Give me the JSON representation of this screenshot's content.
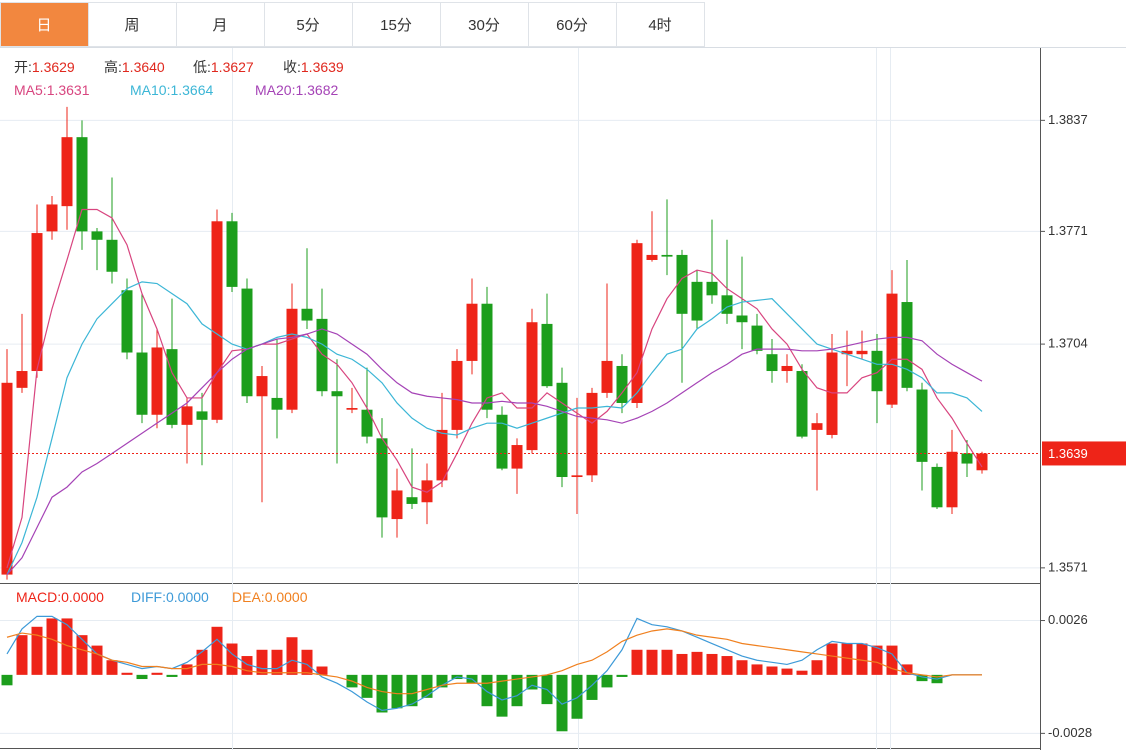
{
  "tabs": {
    "items": [
      "日",
      "周",
      "月",
      "5分",
      "15分",
      "30分",
      "60分",
      "4时"
    ],
    "active": 0
  },
  "chart_data": [
    {
      "type": "candlestick",
      "up_color": "#ee2418",
      "down_color": "#1c9e1c",
      "open": [
        1.3567,
        1.3678,
        1.3688,
        1.3771,
        1.3786,
        1.3827,
        1.3771,
        1.3766,
        1.3736,
        1.3699,
        1.3662,
        1.3701,
        1.3656,
        1.3664,
        1.3659,
        1.3777,
        1.3737,
        1.3673,
        1.3672,
        1.3665,
        1.3725,
        1.3719,
        1.3676,
        1.3665,
        1.3665,
        1.3648,
        1.36,
        1.3613,
        1.361,
        1.3623,
        1.3653,
        1.3694,
        1.3728,
        1.3662,
        1.363,
        1.3641,
        1.3716,
        1.3681,
        1.3625,
        1.3626,
        1.3675,
        1.3691,
        1.3669,
        1.3754,
        1.3757,
        1.3757,
        1.3741,
        1.3741,
        1.3733,
        1.3721,
        1.3715,
        1.3698,
        1.3688,
        1.3688,
        1.3653,
        1.365,
        1.3698,
        1.3698,
        1.37,
        1.3668,
        1.3729,
        1.3677,
        1.3631,
        1.3607,
        1.3639,
        1.3629
      ],
      "high": [
        1.3701,
        1.3722,
        1.3787,
        1.3792,
        1.3845,
        1.3837,
        1.3773,
        1.3803,
        1.3743,
        1.3734,
        1.3713,
        1.3731,
        1.3672,
        1.3675,
        1.3784,
        1.3782,
        1.3743,
        1.3691,
        1.3707,
        1.374,
        1.3761,
        1.3737,
        1.3695,
        1.3678,
        1.369,
        1.366,
        1.363,
        1.3642,
        1.3633,
        1.3675,
        1.3701,
        1.3743,
        1.3738,
        1.3667,
        1.3648,
        1.3725,
        1.3734,
        1.369,
        1.3672,
        1.3678,
        1.374,
        1.3698,
        1.3766,
        1.3783,
        1.379,
        1.376,
        1.3748,
        1.3778,
        1.3766,
        1.3756,
        1.3722,
        1.3707,
        1.3698,
        1.3692,
        1.3663,
        1.371,
        1.3712,
        1.3712,
        1.371,
        1.3748,
        1.3754,
        1.3681,
        1.3633,
        1.3653,
        1.3647,
        1.364
      ],
      "low": [
        1.3564,
        1.3675,
        1.3684,
        1.3766,
        1.3772,
        1.376,
        1.3748,
        1.374,
        1.3695,
        1.3657,
        1.3654,
        1.3654,
        1.3633,
        1.3632,
        1.3657,
        1.3735,
        1.3669,
        1.361,
        1.3648,
        1.3663,
        1.3713,
        1.3673,
        1.3633,
        1.3663,
        1.3645,
        1.3589,
        1.3589,
        1.3606,
        1.3597,
        1.3619,
        1.3648,
        1.3686,
        1.366,
        1.3629,
        1.3615,
        1.3639,
        1.3678,
        1.3619,
        1.3603,
        1.3622,
        1.3672,
        1.3663,
        1.3666,
        1.3753,
        1.3745,
        1.3681,
        1.3713,
        1.3728,
        1.3716,
        1.3701,
        1.3698,
        1.3681,
        1.3681,
        1.3648,
        1.3617,
        1.3648,
        1.3679,
        1.3695,
        1.3657,
        1.3666,
        1.3676,
        1.3617,
        1.3606,
        1.3603,
        1.3625,
        1.3627
      ],
      "close": [
        1.3681,
        1.3688,
        1.377,
        1.3787,
        1.3827,
        1.3771,
        1.3766,
        1.3747,
        1.3699,
        1.3662,
        1.3702,
        1.3656,
        1.3667,
        1.3659,
        1.3777,
        1.3738,
        1.3673,
        1.3685,
        1.3665,
        1.3725,
        1.3718,
        1.3676,
        1.3673,
        1.3666,
        1.3649,
        1.3601,
        1.3617,
        1.3609,
        1.3623,
        1.3653,
        1.3694,
        1.3728,
        1.3665,
        1.363,
        1.3644,
        1.3717,
        1.3679,
        1.3625,
        1.3626,
        1.3675,
        1.3694,
        1.3669,
        1.3764,
        1.3757,
        1.3756,
        1.3722,
        1.3718,
        1.3733,
        1.3722,
        1.3717,
        1.37,
        1.3688,
        1.3691,
        1.3649,
        1.3657,
        1.3699,
        1.37,
        1.37,
        1.3676,
        1.3734,
        1.3678,
        1.3634,
        1.3607,
        1.364,
        1.3633,
        1.3639
      ],
      "readout": [
        {
          "label": "开:",
          "value": "1.3629"
        },
        {
          "label": "高:",
          "value": "1.3640"
        },
        {
          "label": "低:",
          "value": "1.3627"
        },
        {
          "label": "收:",
          "value": "1.3639"
        }
      ],
      "series": [
        {
          "name": "MA5:",
          "readout": "1.3631",
          "color": "#d8457f",
          "values": [
            1.3571,
            1.3601,
            1.3689,
            1.3725,
            1.3754,
            1.3784,
            1.3784,
            1.3779,
            1.3763,
            1.3734,
            1.3713,
            1.3687,
            1.3672,
            1.3672,
            1.3687,
            1.37,
            1.3701,
            1.3704,
            1.3704,
            1.3707,
            1.371,
            1.3698,
            1.3692,
            1.3681,
            1.3666,
            1.3648,
            1.3635,
            1.3619,
            1.3616,
            1.3622,
            1.3639,
            1.3657,
            1.3672,
            1.3675,
            1.3666,
            1.3666,
            1.3675,
            1.3669,
            1.3663,
            1.3657,
            1.3664,
            1.3675,
            1.3687,
            1.3713,
            1.3731,
            1.3743,
            1.3748,
            1.3746,
            1.3737,
            1.3731,
            1.3725,
            1.3713,
            1.3704,
            1.3689,
            1.3678,
            1.3675,
            1.3675,
            1.3684,
            1.3687,
            1.3695,
            1.3695,
            1.3689,
            1.3672,
            1.366,
            1.3645,
            1.3631
          ]
        },
        {
          "name": "MA10:",
          "readout": "1.3664",
          "color": "#3cb6d6",
          "values": [
            1.3567,
            1.3586,
            1.3613,
            1.3648,
            1.3684,
            1.3704,
            1.3719,
            1.3728,
            1.3737,
            1.3741,
            1.374,
            1.3734,
            1.3728,
            1.3716,
            1.371,
            1.3704,
            1.3701,
            1.3704,
            1.3708,
            1.371,
            1.3708,
            1.3704,
            1.3698,
            1.3695,
            1.3689,
            1.3681,
            1.3669,
            1.366,
            1.3654,
            1.3651,
            1.365,
            1.3654,
            1.3657,
            1.3657,
            1.3654,
            1.3657,
            1.366,
            1.3663,
            1.3666,
            1.3666,
            1.3667,
            1.3666,
            1.3675,
            1.3687,
            1.3698,
            1.3701,
            1.3713,
            1.3719,
            1.3726,
            1.3729,
            1.373,
            1.3731,
            1.3722,
            1.3713,
            1.3704,
            1.3701,
            1.3698,
            1.3695,
            1.3692,
            1.3692,
            1.3689,
            1.3684,
            1.3675,
            1.3675,
            1.3672,
            1.3664
          ]
        },
        {
          "name": "MA20:",
          "readout": "1.3682",
          "color": "#a543b6",
          "values": [
            1.3567,
            1.3577,
            1.3595,
            1.3613,
            1.3619,
            1.3628,
            1.3633,
            1.3639,
            1.3645,
            1.3651,
            1.3657,
            1.3663,
            1.3669,
            1.3678,
            1.3687,
            1.3695,
            1.3701,
            1.3704,
            1.3707,
            1.3708,
            1.371,
            1.3713,
            1.371,
            1.3704,
            1.3698,
            1.3689,
            1.3681,
            1.3675,
            1.3673,
            1.3672,
            1.3671,
            1.3669,
            1.3669,
            1.367,
            1.3669,
            1.3669,
            1.3667,
            1.3664,
            1.3661,
            1.366,
            1.3659,
            1.3657,
            1.366,
            1.3664,
            1.3669,
            1.3675,
            1.3681,
            1.3687,
            1.3692,
            1.3698,
            1.3701,
            1.3701,
            1.3701,
            1.37,
            1.37,
            1.3701,
            1.3703,
            1.3705,
            1.3707,
            1.3708,
            1.3708,
            1.3706,
            1.3698,
            1.3692,
            1.3687,
            1.3682
          ]
        }
      ],
      "ylim": [
        1.3562,
        1.388
      ],
      "yticks": [
        1.3837,
        1.3771,
        1.3704,
        1.3571
      ],
      "grid": true
    },
    {
      "type": "macd",
      "series": [
        {
          "name": "MACD:",
          "readout": "0.0000",
          "style": "bar",
          "color": "#ee2418",
          "negative_color": "#1c9e1c",
          "values": [
            -0.0005,
            0.0019,
            0.0023,
            0.0027,
            0.0027,
            0.0019,
            0.0014,
            0.0007,
            0.0001,
            -0.0002,
            0.0001,
            -0.0001,
            0.0005,
            0.0012,
            0.0023,
            0.0015,
            0.0009,
            0.0012,
            0.0012,
            0.0018,
            0.0012,
            0.0004,
            0,
            -0.0006,
            -0.0011,
            -0.0018,
            -0.0016,
            -0.0015,
            -0.0011,
            -0.0006,
            -0.0002,
            -0.0004,
            -0.0015,
            -0.002,
            -0.0015,
            -0.0007,
            -0.0014,
            -0.0027,
            -0.0021,
            -0.0012,
            -0.0006,
            -0.0001,
            0.0012,
            0.0012,
            0.0012,
            0.001,
            0.0011,
            0.001,
            0.0009,
            0.0007,
            0.0005,
            0.0004,
            0.0003,
            0.0002,
            0.0007,
            0.0015,
            0.0015,
            0.0015,
            0.0014,
            0.0014,
            0.0005,
            -0.0003,
            -0.0004,
            0,
            0,
            0
          ]
        },
        {
          "name": "DIFF:",
          "readout": "0.0000",
          "style": "line",
          "color": "#3d9ad8",
          "values": [
            0.001,
            0.0022,
            0.0028,
            0.0028,
            0.0024,
            0.0017,
            0.001,
            0.0007,
            0.0005,
            0.0003,
            0.0004,
            0.0003,
            0.0006,
            0.0011,
            0.0017,
            0.001,
            0.0005,
            0.0003,
            0.0003,
            0.0007,
            0.0005,
            -0.0001,
            -0.0004,
            -0.0008,
            -0.0013,
            -0.0017,
            -0.0016,
            -0.0014,
            -0.001,
            -0.0005,
            -0.0001,
            -0.0002,
            -0.0008,
            -0.0012,
            -0.001,
            -0.0005,
            -0.0007,
            -0.0014,
            -0.0011,
            -0.0005,
            0.0002,
            0.0012,
            0.0027,
            0.0024,
            0.0023,
            0.0021,
            0.0018,
            0.0015,
            0.0012,
            0.0009,
            0.0007,
            0.0006,
            0.0005,
            0.0007,
            0.0012,
            0.0016,
            0.0015,
            0.0015,
            0.0013,
            0.001,
            0.0001,
            -0.0001,
            -0.0002,
            0,
            0,
            0
          ]
        },
        {
          "name": "DEA:",
          "readout": "0.0000",
          "style": "line",
          "color": "#f0801f",
          "values": [
            0.0018,
            0.002,
            0.0019,
            0.0017,
            0.0014,
            0.0012,
            0.001,
            0.0007,
            0.0006,
            0.0004,
            0.0004,
            0.0003,
            0.0003,
            0.0005,
            0.0005,
            0.0004,
            0.0002,
            0.0001,
            0.0001,
            0.0001,
            0.0001,
            0,
            -0.0001,
            -0.0003,
            -0.0006,
            -0.0008,
            -0.0009,
            -0.0009,
            -0.0007,
            -0.0005,
            -0.0004,
            -0.0004,
            -0.0004,
            -0.0003,
            -0.0002,
            -0.0001,
            0,
            0.0002,
            0.0005,
            0.0007,
            0.0011,
            0.0016,
            0.0019,
            0.0021,
            0.0022,
            0.0021,
            0.0019,
            0.0018,
            0.0017,
            0.0015,
            0.0014,
            0.0013,
            0.0012,
            0.0011,
            0.001,
            0.0009,
            0.0008,
            0.0007,
            0.0006,
            0.0003,
            0.0001,
            0,
            -0.0001,
            0,
            0,
            0
          ]
        }
      ],
      "ylim": [
        -0.0035,
        0.0043
      ],
      "yticks": [
        0.0026,
        -0.0028
      ],
      "grid": true
    }
  ]
}
